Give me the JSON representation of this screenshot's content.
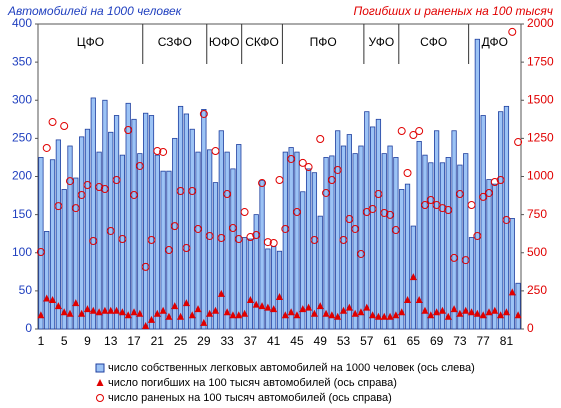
{
  "chart_data": {
    "type": "bar",
    "y_title": "Автомобилей на 1000  человек",
    "y2_title": "Погибших и раненых на 100 тысяч",
    "categories": [
      1,
      null,
      null,
      null,
      5,
      null,
      null,
      null,
      9,
      null,
      null,
      null,
      13,
      null,
      null,
      null,
      17,
      null,
      null,
      null,
      21,
      null,
      null,
      null,
      25,
      null,
      null,
      null,
      29,
      null,
      null,
      null,
      33,
      null,
      null,
      null,
      37,
      null,
      null,
      null,
      41,
      null,
      null,
      null,
      45,
      null,
      null,
      null,
      49,
      null,
      null,
      null,
      53,
      null,
      null,
      null,
      57,
      null,
      null,
      null,
      61,
      null,
      null,
      null,
      65,
      null,
      null,
      null,
      69,
      null,
      null,
      null,
      73,
      null,
      null,
      null,
      77,
      null,
      null,
      null,
      81,
      null,
      null
    ],
    "regions": [
      {
        "name": "ЦФО",
        "count": 18
      },
      {
        "name": "СЗФО",
        "count": 11
      },
      {
        "name": "ЮФО",
        "count": 6
      },
      {
        "name": "СКФО",
        "count": 7
      },
      {
        "name": "ПФО",
        "count": 14
      },
      {
        "name": "УФО",
        "count": 6
      },
      {
        "name": "СФО",
        "count": 12
      },
      {
        "name": "ДФО",
        "count": 9
      }
    ],
    "series": [
      {
        "name": "число собственных легковых автомобилей на 1000 человек (ось слева)",
        "color": "#9cc3f5",
        "edge": "#1f3f9f",
        "marker": "bar",
        "values": [
          225,
          128,
          222,
          248,
          183,
          240,
          198,
          252,
          262,
          303,
          232,
          300,
          258,
          280,
          228,
          296,
          275,
          230,
          283,
          280,
          228,
          207,
          207,
          250,
          292,
          282,
          262,
          232,
          288,
          235,
          192,
          260,
          232,
          210,
          242,
          120,
          118,
          150,
          195,
          105,
          108,
          102,
          232,
          238,
          232,
          180,
          210,
          205,
          148,
          225,
          227,
          260,
          240,
          255,
          230,
          240,
          285,
          265,
          275,
          230,
          240,
          225,
          183,
          190,
          135,
          246,
          228,
          218,
          260,
          218,
          225,
          260,
          215,
          230,
          120,
          380,
          280,
          196,
          190,
          285,
          292,
          145,
          60
        ]
      },
      {
        "name": "число погибших на 100 тысяч автомобилей (ось справа)",
        "color": "#e00000",
        "marker": "triangle",
        "axis": "y2",
        "values": [
          90,
          200,
          190,
          150,
          110,
          100,
          170,
          100,
          130,
          120,
          110,
          120,
          120,
          120,
          110,
          90,
          110,
          100,
          20,
          60,
          100,
          120,
          80,
          150,
          80,
          170,
          90,
          130,
          40,
          100,
          120,
          230,
          110,
          90,
          90,
          100,
          190,
          160,
          150,
          140,
          130,
          210,
          90,
          110,
          90,
          130,
          140,
          100,
          150,
          100,
          90,
          80,
          120,
          140,
          100,
          110,
          140,
          90,
          80,
          80,
          80,
          90,
          110,
          190,
          340,
          190,
          120,
          90,
          110,
          120,
          80,
          130,
          100,
          120,
          110,
          100,
          90,
          110,
          120,
          90,
          110,
          240,
          90
        ]
      },
      {
        "name": "число раненых на 100 тысяч автомобилей (ось справа)",
        "color": "#e00000",
        "marker": "circle",
        "axis": "y2",
        "values": [
          505,
          1187,
          1357,
          806,
          1331,
          970,
          793,
          879,
          944,
          577,
          931,
          918,
          643,
          977,
          590,
          1305,
          879,
          1069,
          407,
          584,
          1167,
          1161,
          518,
          675,
          905,
          531,
          905,
          656,
          1410,
          610,
          1167,
          597,
          885,
          662,
          590,
          767,
          603,
          616,
          957,
          570,
          564,
          977,
          656,
          1115,
          767,
          1089,
          1062,
          584,
          1246,
          892,
          977,
          1043,
          584,
          721,
          656,
          492,
          767,
          787,
          885,
          761,
          748,
          649,
          1298,
          1023,
          1272,
          1298,
          813,
          846,
          813,
          793,
          780,
          466,
          885,
          452,
          813,
          610,
          866,
          892,
          964,
          977,
          715,
          1948,
          1226
        ]
      }
    ],
    "ylim": [
      0,
      400
    ],
    "yticks": [
      0,
      50,
      100,
      150,
      200,
      250,
      300,
      350,
      400
    ],
    "y_color": "#1f3fbf",
    "y2lim": [
      0,
      2000
    ],
    "y2ticks": [
      0,
      250,
      500,
      750,
      1000,
      1250,
      1500,
      1750,
      2000
    ],
    "y2_color": "#e00000",
    "grid": false
  }
}
